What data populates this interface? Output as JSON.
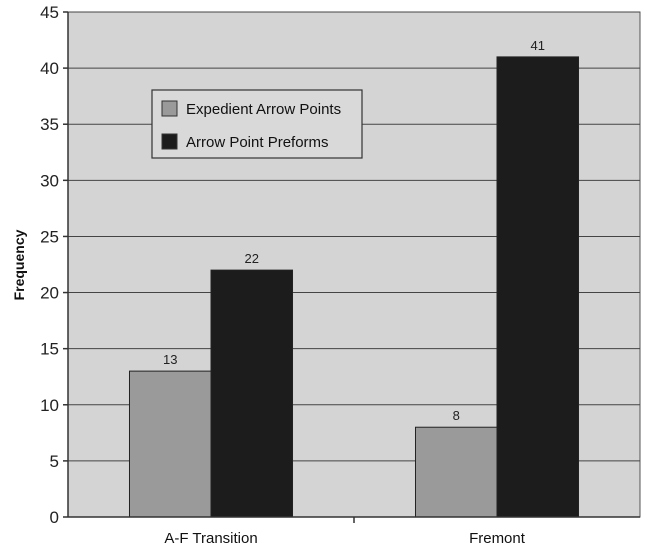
{
  "chart_data": {
    "type": "bar",
    "title": "",
    "xlabel": "",
    "ylabel": "Frequency",
    "categories": [
      "A-F Transition",
      "Fremont"
    ],
    "series": [
      {
        "name": "Expedient Arrow Points",
        "values": [
          13,
          8
        ],
        "color": "#9a9a9a"
      },
      {
        "name": "Arrow Point Preforms",
        "values": [
          22,
          41
        ],
        "color": "#1c1c1c"
      }
    ],
    "ylim": [
      0,
      45
    ],
    "yticks": [
      0,
      5,
      10,
      15,
      20,
      25,
      30,
      35,
      40,
      45
    ],
    "grid": true,
    "legend_position": "top-left",
    "plot_background": "#d4d4d4"
  }
}
